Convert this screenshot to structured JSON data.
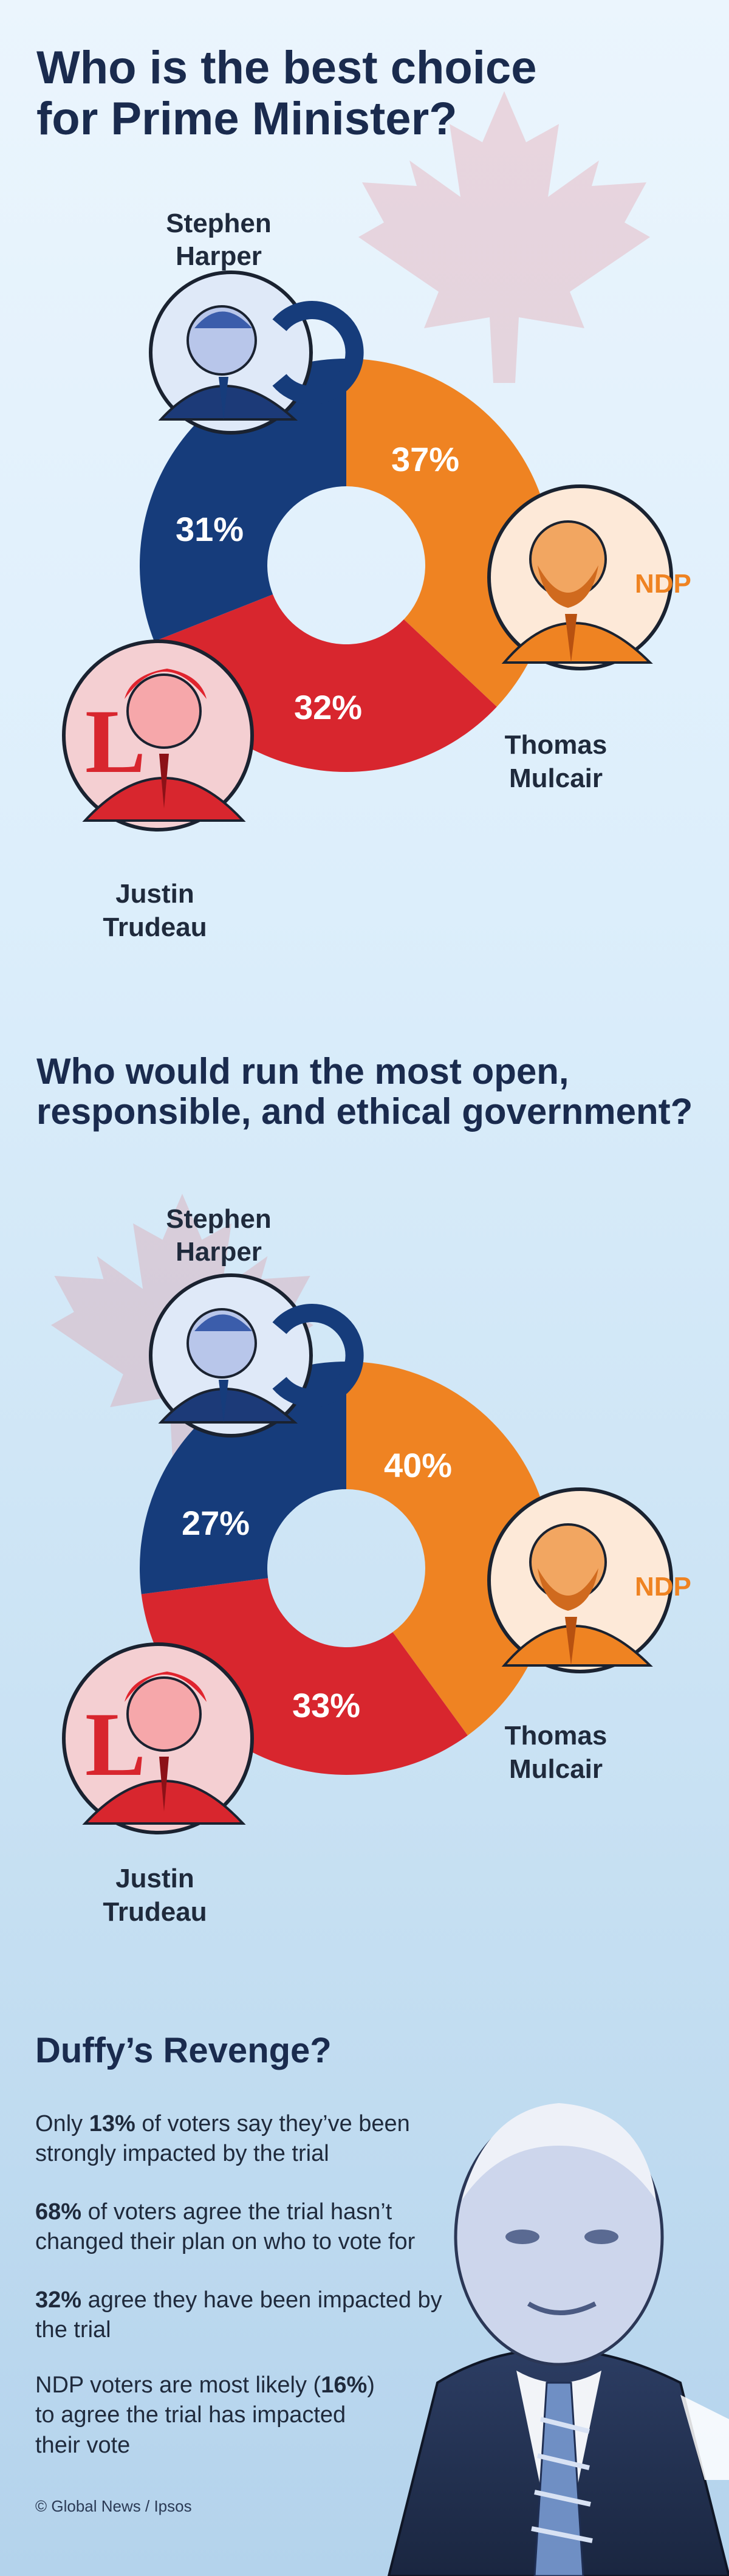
{
  "chart_data": [
    {
      "type": "pie",
      "title": "Who is the best choice for Prime Minister?",
      "categories": [
        "Thomas Mulcair",
        "Justin Trudeau",
        "Stephen Harper"
      ],
      "values": [
        37,
        32,
        31
      ],
      "value_labels": [
        "37%",
        "32%",
        "31%"
      ],
      "colors": [
        "#ef8322",
        "#d8262e",
        "#163c7b"
      ],
      "legend": "none"
    },
    {
      "type": "pie",
      "title": "Who would run the most open, responsible, and ethical government?",
      "categories": [
        "Thomas Mulcair",
        "Justin Trudeau",
        "Stephen Harper"
      ],
      "values": [
        40,
        33,
        27
      ],
      "value_labels": [
        "40%",
        "33%",
        "27%"
      ],
      "colors": [
        "#ef8322",
        "#d8262e",
        "#163c7b"
      ],
      "legend": "none"
    }
  ],
  "charts": [
    {
      "title_line1": "Who is the best choice",
      "title_line2": "for Prime Minister?",
      "harper_line1": "Stephen",
      "harper_line2": "Harper",
      "mulcair_line1": "Thomas",
      "mulcair_line2": "Mulcair",
      "trudeau_line1": "Justin",
      "trudeau_line2": "Trudeau",
      "mulcair_pct": "37%",
      "trudeau_pct": "32%",
      "harper_pct": "31%",
      "ndp_logo": "NDP"
    },
    {
      "title_line1": "Who would run the most open,",
      "title_line2": "responsible, and ethical government?",
      "harper_line1": "Stephen",
      "harper_line2": "Harper",
      "mulcair_line1": "Thomas",
      "mulcair_line2": "Mulcair",
      "trudeau_line1": "Justin",
      "trudeau_line2": "Trudeau",
      "mulcair_pct": "40%",
      "trudeau_pct": "33%",
      "harper_pct": "27%",
      "ndp_logo": "NDP"
    }
  ],
  "duffy": {
    "title": "Duffy’s Revenge?",
    "stat1_a": "Only ",
    "stat1_b": "13%",
    "stat1_c": " of voters say they’ve been strongly impacted by the trial",
    "stat2_b": "68%",
    "stat2_c": " of voters agree the trial hasn’t changed their plan on who to vote for",
    "stat3_b": "32%",
    "stat3_c": " agree they have been impacted by the trial",
    "stat4_a": "NDP voters are most likely (",
    "stat4_b": "16%",
    "stat4_c": ") to agree the trial has impacted their vote"
  },
  "credit": "© Global News / Ipsos",
  "icons": {
    "maple_leaf": "maple-leaf-icon",
    "conservative_logo": "conservative-logo-icon",
    "liberal_logo": "liberal-logo-icon",
    "ndp_logo": "ndp-logo-icon"
  }
}
